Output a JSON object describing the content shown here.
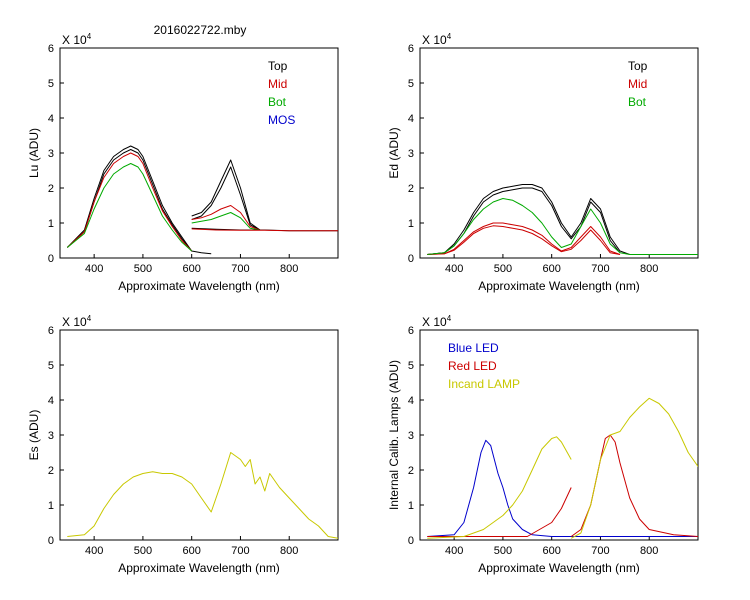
{
  "figure_title": "2016022722.mby",
  "chart_data": [
    {
      "id": "lu",
      "type": "line",
      "title": "",
      "xlabel": "Approximate Wavelength (nm)",
      "ylabel": "Lu (ADU)",
      "multiplier": "X 10",
      "multiplier_exp": "4",
      "xlim": [
        330,
        900
      ],
      "ylim": [
        0,
        6
      ],
      "xticks": [
        400,
        500,
        600,
        700,
        800
      ],
      "yticks": [
        0,
        1,
        2,
        3,
        4,
        5,
        6
      ],
      "legend": [
        {
          "label": "Top",
          "color": "#000000"
        },
        {
          "label": "Mid",
          "color": "#cc0000"
        },
        {
          "label": "Bot",
          "color": "#00aa00"
        },
        {
          "label": "MOS",
          "color": "#0000cc"
        }
      ],
      "series": [
        {
          "name": "Top",
          "color": "#000000",
          "x": [
            345,
            380,
            400,
            420,
            440,
            460,
            475,
            490,
            500,
            520,
            540,
            560,
            580,
            600,
            620,
            640
          ],
          "y": [
            0.3,
            0.8,
            1.7,
            2.5,
            2.9,
            3.1,
            3.2,
            3.1,
            2.9,
            2.2,
            1.5,
            1.0,
            0.6,
            0.2,
            0.15,
            0.12
          ]
        },
        {
          "name": "Top-b",
          "color": "#000000",
          "x": [
            345,
            380,
            400,
            420,
            440,
            460,
            475,
            490,
            500,
            520,
            540,
            560,
            580,
            600
          ],
          "y": [
            0.3,
            0.75,
            1.6,
            2.4,
            2.8,
            3.0,
            3.1,
            3.0,
            2.8,
            2.1,
            1.4,
            0.95,
            0.55,
            0.2
          ]
        },
        {
          "name": "Mid",
          "color": "#cc0000",
          "x": [
            345,
            380,
            400,
            420,
            440,
            460,
            475,
            490,
            500,
            520,
            540,
            560,
            580,
            600
          ],
          "y": [
            0.3,
            0.75,
            1.6,
            2.3,
            2.7,
            2.9,
            3.0,
            2.9,
            2.7,
            2.0,
            1.35,
            0.9,
            0.5,
            0.2
          ]
        },
        {
          "name": "Bot",
          "color": "#00aa00",
          "x": [
            345,
            380,
            400,
            420,
            440,
            460,
            475,
            490,
            500,
            520,
            540,
            560,
            580,
            600
          ],
          "y": [
            0.3,
            0.7,
            1.4,
            2.0,
            2.4,
            2.6,
            2.7,
            2.6,
            2.4,
            1.8,
            1.2,
            0.8,
            0.45,
            0.2
          ]
        },
        {
          "name": "Top-2",
          "color": "#000000",
          "x": [
            600,
            620,
            640,
            660,
            680,
            700,
            720,
            740
          ],
          "y": [
            1.2,
            1.3,
            1.6,
            2.2,
            2.8,
            2.0,
            1.0,
            0.8
          ]
        },
        {
          "name": "Top-2b",
          "color": "#000000",
          "x": [
            600,
            620,
            640,
            660,
            680,
            700,
            720,
            740
          ],
          "y": [
            1.1,
            1.2,
            1.5,
            2.0,
            2.6,
            1.8,
            0.95,
            0.8
          ]
        },
        {
          "name": "Mid-2",
          "color": "#cc0000",
          "x": [
            600,
            620,
            640,
            660,
            680,
            700,
            720,
            740
          ],
          "y": [
            1.1,
            1.15,
            1.25,
            1.4,
            1.5,
            1.3,
            0.9,
            0.8
          ]
        },
        {
          "name": "Bot-2",
          "color": "#00aa00",
          "x": [
            600,
            620,
            640,
            660,
            680,
            700,
            720,
            740
          ],
          "y": [
            1.0,
            1.05,
            1.1,
            1.2,
            1.3,
            1.15,
            0.85,
            0.8
          ]
        },
        {
          "name": "Dark",
          "color": "#000000",
          "x": [
            600,
            650,
            700,
            750,
            800,
            850,
            900
          ],
          "y": [
            0.85,
            0.82,
            0.8,
            0.8,
            0.78,
            0.78,
            0.78
          ]
        },
        {
          "name": "Dark-red",
          "color": "#cc0000",
          "x": [
            600,
            650,
            700,
            750,
            800,
            850,
            900
          ],
          "y": [
            0.83,
            0.8,
            0.79,
            0.79,
            0.78,
            0.78,
            0.78
          ]
        }
      ]
    },
    {
      "id": "ed",
      "type": "line",
      "title": "",
      "xlabel": "Approximate Wavelength (nm)",
      "ylabel": "Ed  (ADU)",
      "multiplier": "X 10",
      "multiplier_exp": "4",
      "xlim": [
        330,
        900
      ],
      "ylim": [
        0,
        6
      ],
      "xticks": [
        400,
        500,
        600,
        700,
        800
      ],
      "yticks": [
        0,
        1,
        2,
        3,
        4,
        5,
        6
      ],
      "legend": [
        {
          "label": "Top",
          "color": "#000000"
        },
        {
          "label": "Mid",
          "color": "#cc0000"
        },
        {
          "label": "Bot",
          "color": "#00aa00"
        }
      ],
      "series": [
        {
          "name": "Top",
          "color": "#000000",
          "x": [
            345,
            380,
            400,
            420,
            440,
            460,
            480,
            500,
            520,
            540,
            560,
            580,
            600,
            620,
            640,
            660,
            680,
            700,
            720,
            740,
            760,
            800,
            850,
            900
          ],
          "y": [
            0.1,
            0.15,
            0.4,
            0.8,
            1.3,
            1.7,
            1.9,
            2.0,
            2.05,
            2.1,
            2.1,
            2.0,
            1.6,
            1.0,
            0.6,
            1.0,
            1.7,
            1.4,
            0.6,
            0.2,
            0.1,
            0.1,
            0.1,
            0.1
          ]
        },
        {
          "name": "Top-b",
          "color": "#000000",
          "x": [
            345,
            380,
            400,
            420,
            440,
            460,
            480,
            500,
            520,
            540,
            560,
            580,
            600,
            620,
            640,
            660,
            680,
            700,
            720,
            740
          ],
          "y": [
            0.1,
            0.15,
            0.35,
            0.7,
            1.2,
            1.6,
            1.8,
            1.9,
            1.95,
            2.0,
            2.0,
            1.9,
            1.5,
            0.9,
            0.55,
            0.9,
            1.6,
            1.3,
            0.5,
            0.15
          ]
        },
        {
          "name": "Mid",
          "color": "#cc0000",
          "x": [
            345,
            380,
            400,
            420,
            440,
            460,
            480,
            500,
            520,
            540,
            560,
            580,
            600,
            620,
            640,
            660,
            680,
            700,
            720,
            740
          ],
          "y": [
            0.1,
            0.12,
            0.25,
            0.5,
            0.75,
            0.9,
            1.0,
            1.0,
            0.95,
            0.9,
            0.8,
            0.65,
            0.4,
            0.2,
            0.3,
            0.6,
            0.9,
            0.6,
            0.2,
            0.1
          ]
        },
        {
          "name": "Mid-b",
          "color": "#cc0000",
          "x": [
            345,
            380,
            400,
            420,
            440,
            460,
            480,
            500,
            520,
            540,
            560,
            580,
            600,
            620,
            640,
            660,
            680,
            700,
            720,
            740
          ],
          "y": [
            0.1,
            0.12,
            0.22,
            0.45,
            0.7,
            0.85,
            0.92,
            0.9,
            0.85,
            0.8,
            0.7,
            0.55,
            0.35,
            0.18,
            0.25,
            0.5,
            0.8,
            0.5,
            0.15,
            0.1
          ]
        },
        {
          "name": "Bot",
          "color": "#00aa00",
          "x": [
            345,
            380,
            400,
            420,
            440,
            460,
            480,
            500,
            520,
            540,
            560,
            580,
            600,
            620,
            640,
            660,
            680,
            700,
            720,
            740,
            760,
            800,
            850,
            900
          ],
          "y": [
            0.1,
            0.15,
            0.35,
            0.7,
            1.1,
            1.4,
            1.6,
            1.7,
            1.65,
            1.5,
            1.3,
            1.0,
            0.6,
            0.3,
            0.4,
            0.9,
            1.4,
            1.0,
            0.4,
            0.15,
            0.1,
            0.1,
            0.1,
            0.1
          ]
        }
      ]
    },
    {
      "id": "es",
      "type": "line",
      "title": "",
      "xlabel": "Approximate Wavelength (nm)",
      "ylabel": "Es  (ADU)",
      "multiplier": "X 10",
      "multiplier_exp": "4",
      "xlim": [
        330,
        900
      ],
      "ylim": [
        0,
        6
      ],
      "xticks": [
        400,
        500,
        600,
        700,
        800
      ],
      "yticks": [
        0,
        1,
        2,
        3,
        4,
        5,
        6
      ],
      "legend": [],
      "series": [
        {
          "name": "Es",
          "color": "#c8c800",
          "x": [
            345,
            380,
            400,
            420,
            440,
            460,
            480,
            500,
            520,
            540,
            560,
            580,
            600,
            620,
            640,
            660,
            680,
            690,
            700,
            710,
            720,
            730,
            740,
            750,
            760,
            780,
            800,
            820,
            840,
            860,
            880,
            900
          ],
          "y": [
            0.1,
            0.15,
            0.4,
            0.9,
            1.3,
            1.6,
            1.8,
            1.9,
            1.95,
            1.9,
            1.9,
            1.8,
            1.6,
            1.2,
            0.8,
            1.6,
            2.5,
            2.4,
            2.3,
            2.1,
            2.3,
            1.6,
            1.8,
            1.4,
            1.9,
            1.5,
            1.2,
            0.9,
            0.6,
            0.4,
            0.1,
            0.05
          ]
        }
      ]
    },
    {
      "id": "cal",
      "type": "line",
      "title": "",
      "xlabel": "Approximate Wavelength (nm)",
      "ylabel": "Internal Calib. Lamps (ADU)",
      "multiplier": "X 10",
      "multiplier_exp": "4",
      "xlim": [
        330,
        900
      ],
      "ylim": [
        0,
        6
      ],
      "xticks": [
        400,
        500,
        600,
        700,
        800
      ],
      "yticks": [
        0,
        1,
        2,
        3,
        4,
        5,
        6
      ],
      "legend": [
        {
          "label": "Blue LED",
          "color": "#0000cc"
        },
        {
          "label": "Red LED",
          "color": "#cc0000"
        },
        {
          "label": "Incand LAMP",
          "color": "#c8c800"
        }
      ],
      "series": [
        {
          "name": "Blue LED",
          "color": "#0000cc",
          "x": [
            345,
            400,
            420,
            440,
            455,
            465,
            475,
            490,
            500,
            510,
            520,
            540,
            560,
            600,
            700,
            900
          ],
          "y": [
            0.1,
            0.15,
            0.5,
            1.5,
            2.5,
            2.85,
            2.7,
            1.9,
            1.5,
            1.0,
            0.6,
            0.3,
            0.15,
            0.1,
            0.1,
            0.1
          ]
        },
        {
          "name": "Red LED",
          "color": "#cc0000",
          "x": [
            345,
            550,
            600,
            620,
            640
          ],
          "y": [
            0.1,
            0.1,
            0.5,
            0.9,
            1.5
          ]
        },
        {
          "name": "Red LED-b",
          "color": "#cc0000",
          "x": [
            640,
            660,
            680,
            700,
            710,
            720,
            730,
            740,
            760,
            780,
            800,
            850,
            900
          ],
          "y": [
            0.1,
            0.3,
            1.0,
            2.3,
            2.9,
            3.0,
            2.8,
            2.2,
            1.2,
            0.6,
            0.3,
            0.15,
            0.1
          ]
        },
        {
          "name": "Incand LAMP",
          "color": "#c8c800",
          "x": [
            345,
            420,
            460,
            500,
            520,
            540,
            560,
            580,
            600,
            610,
            620,
            640
          ],
          "y": [
            0.05,
            0.1,
            0.3,
            0.7,
            1.0,
            1.4,
            2.0,
            2.6,
            2.9,
            2.95,
            2.8,
            2.3
          ]
        },
        {
          "name": "Incand LAMP-b",
          "color": "#c8c800",
          "x": [
            640,
            660,
            680,
            700,
            720,
            740,
            760,
            780,
            800,
            820,
            840,
            860,
            880,
            900
          ],
          "y": [
            0.05,
            0.2,
            1.0,
            2.3,
            3.0,
            3.1,
            3.5,
            3.8,
            4.05,
            3.9,
            3.6,
            3.1,
            2.5,
            2.1
          ]
        }
      ]
    }
  ]
}
